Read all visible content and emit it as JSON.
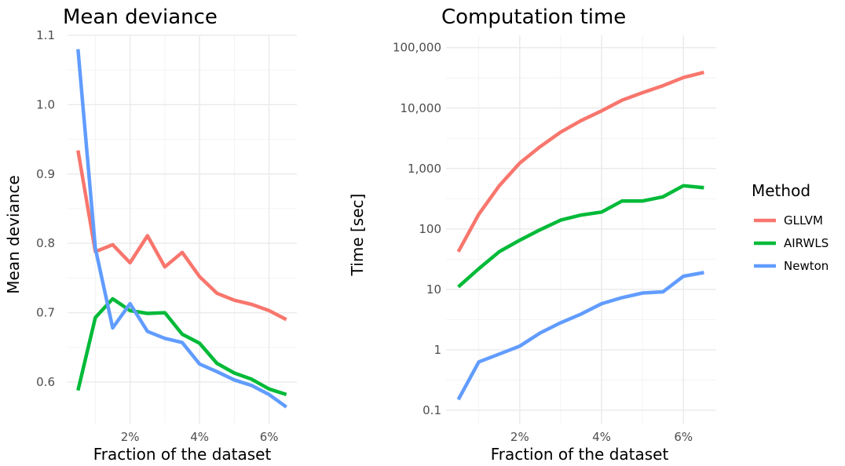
{
  "legend": {
    "title": "Method",
    "items": [
      {
        "label": "GLLVM",
        "color": "#F8766D"
      },
      {
        "label": "AIRWLS",
        "color": "#00BA38"
      },
      {
        "label": "Newton",
        "color": "#619CFF"
      }
    ]
  },
  "chart_data": [
    {
      "type": "line",
      "title": "Mean deviance",
      "xlabel": "Fraction of the dataset",
      "ylabel": "Mean deviance",
      "x": [
        0.5,
        1.0,
        1.5,
        2.0,
        2.5,
        3.0,
        3.5,
        4.0,
        4.5,
        5.0,
        5.5,
        6.0,
        6.5
      ],
      "x_unit": "%",
      "x_ticks": [
        2,
        4,
        6
      ],
      "x_tick_labels": [
        "2%",
        "4%",
        "6%"
      ],
      "xlim": [
        0.2,
        6.8
      ],
      "ylim": [
        0.54,
        1.1
      ],
      "y_ticks": [
        0.6,
        0.7,
        0.8,
        0.9,
        1.0,
        1.1
      ],
      "y_tick_labels": [
        "0.6",
        "0.7",
        "0.8",
        "0.9",
        "1.0",
        "1.1"
      ],
      "y_scale": "linear",
      "grid": true,
      "series": [
        {
          "name": "GLLVM",
          "color": "#F8766D",
          "values": [
            0.934,
            0.788,
            0.798,
            0.772,
            0.811,
            0.766,
            0.787,
            0.752,
            0.728,
            0.718,
            0.712,
            0.703,
            0.69
          ]
        },
        {
          "name": "AIRWLS",
          "color": "#00BA38",
          "values": [
            0.588,
            0.693,
            0.72,
            0.703,
            0.699,
            0.7,
            0.669,
            0.656,
            0.627,
            0.613,
            0.604,
            0.59,
            0.582
          ]
        },
        {
          "name": "Newton",
          "color": "#619CFF",
          "values": [
            1.08,
            0.793,
            0.678,
            0.713,
            0.673,
            0.663,
            0.657,
            0.626,
            0.615,
            0.603,
            0.595,
            0.582,
            0.564
          ]
        }
      ]
    },
    {
      "type": "line",
      "title": "Computation time",
      "xlabel": "Fraction of the dataset",
      "ylabel": "Time [sec]",
      "x": [
        0.5,
        1.0,
        1.5,
        2.0,
        2.5,
        3.0,
        3.5,
        4.0,
        4.5,
        5.0,
        5.5,
        6.0,
        6.5
      ],
      "x_unit": "%",
      "x_ticks": [
        2,
        4,
        6
      ],
      "x_tick_labels": [
        "2%",
        "4%",
        "6%"
      ],
      "xlim": [
        0.2,
        6.8
      ],
      "ylim": [
        0.06,
        160000
      ],
      "y_ticks": [
        0.1,
        1,
        10,
        100,
        1000,
        10000,
        100000
      ],
      "y_tick_labels": [
        "0.1",
        "1",
        "10",
        "100",
        "1,000",
        "10,000",
        "100,000"
      ],
      "y_scale": "log10",
      "grid": true,
      "series": [
        {
          "name": "GLLVM",
          "color": "#F8766D",
          "values": [
            42,
            175,
            520,
            1230,
            2300,
            4000,
            6200,
            9000,
            13500,
            18000,
            23500,
            32000,
            39000
          ]
        },
        {
          "name": "AIRWLS",
          "color": "#00BA38",
          "values": [
            11,
            22,
            42,
            65,
            97,
            140,
            170,
            190,
            290,
            290,
            340,
            520,
            480
          ]
        },
        {
          "name": "Newton",
          "color": "#619CFF",
          "values": [
            0.15,
            0.63,
            0.85,
            1.15,
            1.9,
            2.8,
            3.9,
            5.8,
            7.3,
            8.7,
            9.1,
            16.5,
            19
          ]
        }
      ]
    }
  ]
}
